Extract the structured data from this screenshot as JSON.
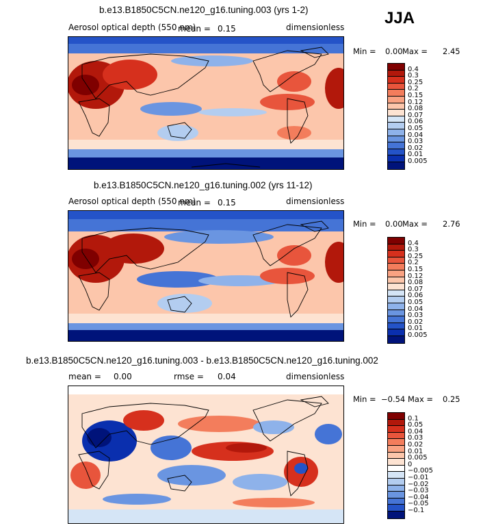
{
  "season": "JJA",
  "panels": [
    {
      "title": "b.e13.B1850C5CN.ne120_g16.tuning.003 (yrs 1-2)",
      "variable": "Aerosol optical depth (550 nm)",
      "mean_label": "mean =",
      "mean": "0.15",
      "units": "dimensionless",
      "min_label": "Min =",
      "min": "0.00",
      "max_label": "Max =",
      "max": "2.45",
      "colorbar": [
        "0.4",
        "0.3",
        "0.25",
        "0.2",
        "0.15",
        "0.12",
        "0.08",
        "0.07",
        "0.06",
        "0.05",
        "0.04",
        "0.03",
        "0.02",
        "0.01",
        "0.005"
      ]
    },
    {
      "title": "b.e13.B1850C5CN.ne120_g16.tuning.002 (yrs 11-12)",
      "variable": "Aerosol optical depth (550 nm)",
      "mean_label": "mean =",
      "mean": "0.15",
      "units": "dimensionless",
      "min_label": "Min =",
      "min": "0.00",
      "max_label": "Max =",
      "max": "2.76",
      "colorbar": [
        "0.4",
        "0.3",
        "0.25",
        "0.2",
        "0.15",
        "0.12",
        "0.08",
        "0.07",
        "0.06",
        "0.05",
        "0.04",
        "0.03",
        "0.02",
        "0.01",
        "0.005"
      ]
    },
    {
      "title": "b.e13.B1850C5CN.ne120_g16.tuning.003 - b.e13.B1850C5CN.ne120_g16.tuning.002",
      "mean_label": "mean =",
      "mean": "0.00",
      "rmse_label": "rmse =",
      "rmse": "0.04",
      "units": "dimensionless",
      "min_label": "Min =",
      "min": "−0.54",
      "max_label": "Max =",
      "max": "0.25",
      "colorbar": [
        "0.1",
        "0.05",
        "0.04",
        "0.03",
        "0.02",
        "0.01",
        "0.005",
        "0",
        "−0.005",
        "−0.01",
        "−0.02",
        "−0.03",
        "−0.04",
        "−0.05",
        "−0.1"
      ]
    }
  ],
  "colors": {
    "abs_scale": [
      "#7f0000",
      "#b2180b",
      "#d6301d",
      "#e8553c",
      "#f37d5c",
      "#f9a282",
      "#fcc6ab",
      "#fde3d2",
      "#d5e5f6",
      "#b3cdf0",
      "#8eb2ea",
      "#6a95e1",
      "#4574d6",
      "#2453c8",
      "#0a2fae",
      "#00137a"
    ],
    "diff_scale": [
      "#7f0000",
      "#b2180b",
      "#d6301d",
      "#e8553c",
      "#f37d5c",
      "#f9a282",
      "#fcc6ab",
      "#fde3d2",
      "#ffffff",
      "#d5e5f6",
      "#b3cdf0",
      "#8eb2ea",
      "#6a95e1",
      "#4574d6",
      "#2453c8",
      "#00137a"
    ]
  }
}
